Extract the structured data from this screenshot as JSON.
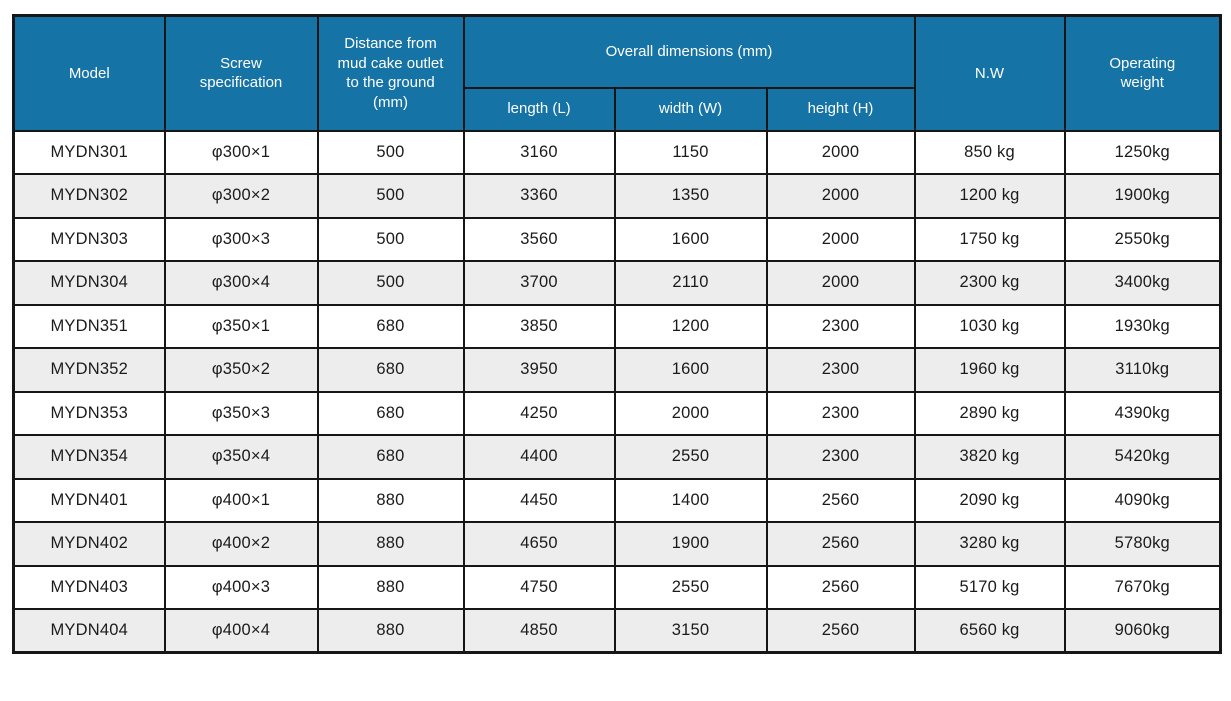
{
  "table": {
    "header": {
      "model": "Model",
      "screw_specification": "Screw specification",
      "distance_to_ground": "Distance from mud cake outlet to the ground (mm)",
      "overall_dimensions": "Overall dimensions (mm)",
      "length": "length (L)",
      "width": "width (W)",
      "height": "height (H)",
      "net_weight": "N.W",
      "operating_weight": "Operating weight"
    },
    "column_keys": [
      "model",
      "screw-specification",
      "distance-to-ground",
      "length",
      "width",
      "height",
      "net-weight",
      "operating-weight"
    ],
    "rows": [
      [
        "MYDN301",
        "φ300×1",
        "500",
        "3160",
        "1150",
        "2000",
        "850 kg",
        "1250kg"
      ],
      [
        "MYDN302",
        "φ300×2",
        "500",
        "3360",
        "1350",
        "2000",
        "1200 kg",
        "1900kg"
      ],
      [
        "MYDN303",
        "φ300×3",
        "500",
        "3560",
        "1600",
        "2000",
        "1750 kg",
        "2550kg"
      ],
      [
        "MYDN304",
        "φ300×4",
        "500",
        "3700",
        "2110",
        "2000",
        "2300 kg",
        "3400kg"
      ],
      [
        "MYDN351",
        "φ350×1",
        "680",
        "3850",
        "1200",
        "2300",
        "1030 kg",
        "1930kg"
      ],
      [
        "MYDN352",
        "φ350×2",
        "680",
        "3950",
        "1600",
        "2300",
        "1960 kg",
        "3110kg"
      ],
      [
        "MYDN353",
        "φ350×3",
        "680",
        "4250",
        "2000",
        "2300",
        "2890 kg",
        "4390kg"
      ],
      [
        "MYDN354",
        "φ350×4",
        "680",
        "4400",
        "2550",
        "2300",
        "3820 kg",
        "5420kg"
      ],
      [
        "MYDN401",
        "φ400×1",
        "880",
        "4450",
        "1400",
        "2560",
        "2090 kg",
        "4090kg"
      ],
      [
        "MYDN402",
        "φ400×2",
        "880",
        "4650",
        "1900",
        "2560",
        "3280 kg",
        "5780kg"
      ],
      [
        "MYDN403",
        "φ400×3",
        "880",
        "4750",
        "2550",
        "2560",
        "5170 kg",
        "7670kg"
      ],
      [
        "MYDN404",
        "φ400×4",
        "880",
        "4850",
        "3150",
        "2560",
        "6560 kg",
        "9060kg"
      ]
    ]
  },
  "colors": {
    "header_bg": "#1573a5",
    "header_text": "#ffffff",
    "row_bg": "#ffffff",
    "row_alt_bg": "#ededed",
    "border": "#161616",
    "body_text": "#1b1b1b",
    "page_bg": "#ffffff"
  }
}
